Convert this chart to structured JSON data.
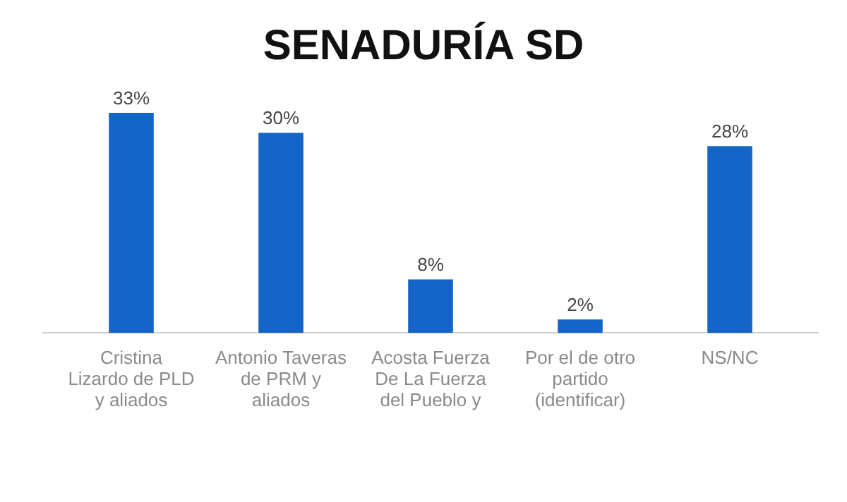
{
  "chart_data": {
    "type": "bar",
    "title": "SENADURÍA SD",
    "categories": [
      "Cristina Lizardo de PLD y aliados",
      "Antonio Taveras de PRM y aliados",
      "Acosta Fuerza De La Fuerza del Pueblo y",
      "Por el de otro partido (identificar)",
      "NS/NC"
    ],
    "values": [
      33,
      30,
      8,
      2,
      28
    ],
    "value_labels": [
      "33%",
      "30%",
      "8%",
      "2%",
      "28%"
    ],
    "color": "#1565c8"
  }
}
